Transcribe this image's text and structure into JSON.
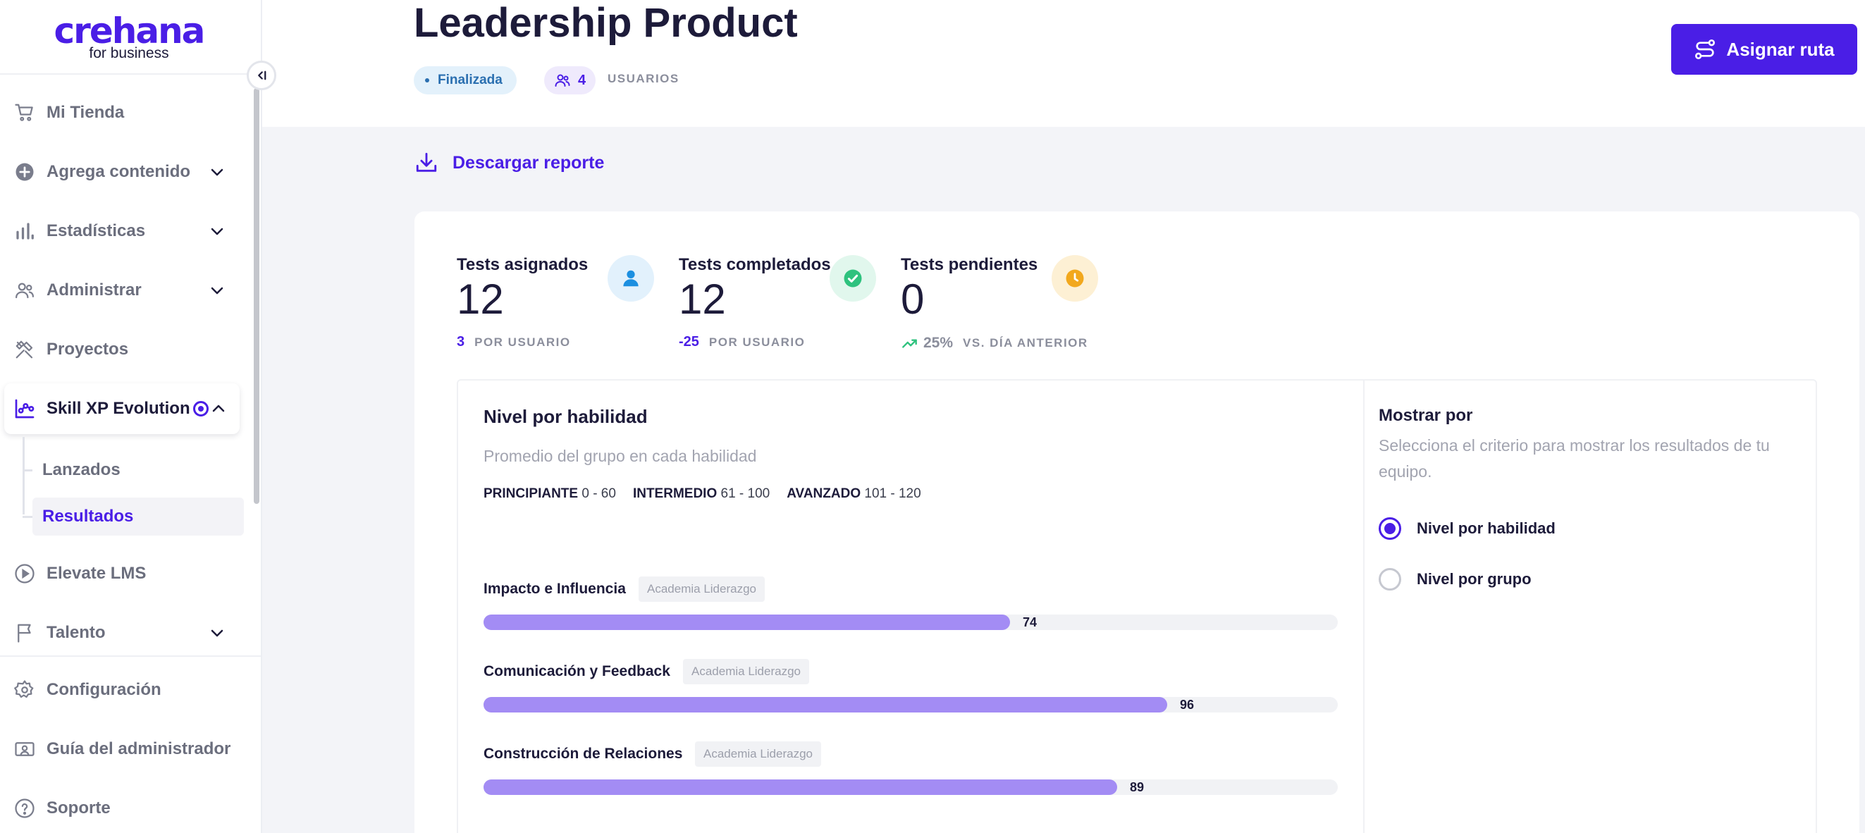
{
  "logo": {
    "brand": "crehana",
    "sub": "for business"
  },
  "sidebar": {
    "items": [
      {
        "label": "Mi Tienda",
        "icon": "cart-icon"
      },
      {
        "label": "Agrega contenido",
        "icon": "plus-circle-icon"
      },
      {
        "label": "Estadísticas",
        "icon": "bar-chart-icon"
      },
      {
        "label": "Administrar",
        "icon": "users-icon"
      },
      {
        "label": "Proyectos",
        "icon": "tools-icon"
      },
      {
        "label": "Skill XP Evolution",
        "icon": "skill-chart-icon"
      },
      {
        "label": "Elevate LMS",
        "icon": "play-circle-icon"
      },
      {
        "label": "Talento",
        "icon": "flag-icon"
      },
      {
        "label": "Configuración",
        "icon": "gear-icon"
      },
      {
        "label": "Guía del administrador",
        "icon": "guide-icon"
      },
      {
        "label": "Soporte",
        "icon": "help-icon"
      }
    ],
    "subitems": [
      {
        "label": "Lanzados"
      },
      {
        "label": "Resultados"
      }
    ]
  },
  "header": {
    "title": "Leadership Product",
    "status": "Finalizada",
    "users_count": "4",
    "users_label": "USUARIOS",
    "assign_label": "Asignar ruta"
  },
  "download_label": "Descargar reporte",
  "stats": [
    {
      "label": "Tests asignados",
      "value": "12",
      "foot_num": "3",
      "foot_unit": "POR USUARIO",
      "icon": "user-icon",
      "color": "#1c8fe0"
    },
    {
      "label": "Tests completados",
      "value": "12",
      "foot_num": "-25",
      "foot_unit": "POR USUARIO",
      "icon": "check-icon",
      "color": "#2ec27e"
    },
    {
      "label": "Tests pendientes",
      "value": "0",
      "foot_pct": "25%",
      "foot_unit": "VS. DÍA ANTERIOR",
      "icon": "clock-icon",
      "color": "#f2a81d"
    }
  ],
  "skills_section": {
    "title": "Nivel por habilidad",
    "subtitle": "Promedio del grupo en cada habilidad",
    "legend": [
      {
        "name": "PRINCIPIANTE",
        "range": "0 - 60"
      },
      {
        "name": "INTERMEDIO",
        "range": "61 - 100"
      },
      {
        "name": "AVANZADO",
        "range": "101 - 120"
      }
    ],
    "max": 120,
    "skills": [
      {
        "name": "Impacto e Influencia",
        "tag": "Academia Liderazgo",
        "value": 74
      },
      {
        "name": "Comunicación y Feedback",
        "tag": "Academia Liderazgo",
        "value": 96
      },
      {
        "name": "Construcción de Relaciones",
        "tag": "Academia Liderazgo",
        "value": 89
      }
    ]
  },
  "show_by": {
    "title": "Mostrar por",
    "subtitle": "Selecciona el criterio para mostrar los resultados de tu equipo.",
    "options": [
      {
        "label": "Nivel por habilidad",
        "selected": true
      },
      {
        "label": "Nivel por grupo",
        "selected": false
      }
    ]
  },
  "colors": {
    "accent": "#4a1ee6",
    "bar": "#a38cf4"
  }
}
